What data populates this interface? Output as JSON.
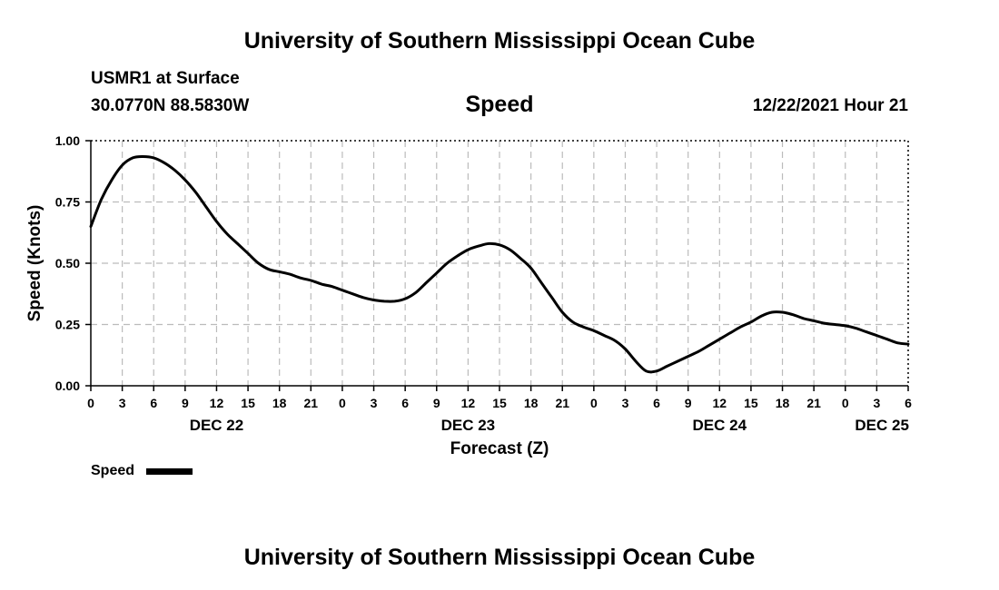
{
  "header": {
    "title": "University of Southern Mississippi Ocean Cube",
    "station": "USMR1 at Surface",
    "location": "30.0770N  88.5830W",
    "variable": "Speed",
    "datetime": "12/22/2021 Hour 21"
  },
  "footer": {
    "title": "University of Southern Mississippi Ocean Cube"
  },
  "legend": {
    "label": "Speed"
  },
  "chart_data": {
    "type": "line",
    "title": "Speed",
    "xlabel": "Forecast (Z)",
    "ylabel": "Speed (Knots)",
    "ylim": [
      0,
      1.0
    ],
    "yticks": [
      0.0,
      0.25,
      0.5,
      0.75,
      1.0
    ],
    "ytick_labels": [
      "0.00",
      "0.25",
      "0.50",
      "0.75",
      "1.00"
    ],
    "xlim_hours": [
      0,
      78
    ],
    "xtick_hours": [
      0,
      3,
      6,
      9,
      12,
      15,
      18,
      21,
      24,
      27,
      30,
      33,
      36,
      39,
      42,
      45,
      48,
      51,
      54,
      57,
      60,
      63,
      66,
      69,
      72,
      75,
      78
    ],
    "xtick_labels": [
      "0",
      "3",
      "6",
      "9",
      "12",
      "15",
      "18",
      "21",
      "0",
      "3",
      "6",
      "9",
      "12",
      "15",
      "18",
      "21",
      "0",
      "3",
      "6",
      "9",
      "12",
      "15",
      "18",
      "21",
      "0",
      "3",
      "6"
    ],
    "date_labels": [
      {
        "label": "DEC 22",
        "hour": 12
      },
      {
        "label": "DEC 23",
        "hour": 36
      },
      {
        "label": "DEC 24",
        "hour": 60
      },
      {
        "label": "DEC 25",
        "hour": 75.5
      }
    ],
    "grid": true,
    "legend_position": "bottom-left",
    "series": [
      {
        "name": "Speed",
        "color": "#000000",
        "x": [
          0,
          1,
          2,
          3,
          4,
          5,
          6,
          7,
          8,
          9,
          10,
          11,
          12,
          13,
          14,
          15,
          16,
          17,
          18,
          19,
          20,
          21,
          22,
          23,
          24,
          25,
          26,
          27,
          28,
          29,
          30,
          31,
          32,
          33,
          34,
          35,
          36,
          37,
          38,
          39,
          40,
          41,
          42,
          43,
          44,
          45,
          46,
          47,
          48,
          49,
          50,
          51,
          52,
          53,
          54,
          55,
          56,
          57,
          58,
          59,
          60,
          61,
          62,
          63,
          64,
          65,
          66,
          67,
          68,
          69,
          70,
          71,
          72,
          73,
          74,
          75,
          76,
          77,
          78
        ],
        "values": [
          0.65,
          0.76,
          0.84,
          0.9,
          0.93,
          0.935,
          0.93,
          0.91,
          0.88,
          0.84,
          0.79,
          0.73,
          0.67,
          0.62,
          0.58,
          0.54,
          0.5,
          0.475,
          0.465,
          0.455,
          0.44,
          0.43,
          0.415,
          0.405,
          0.39,
          0.375,
          0.36,
          0.35,
          0.345,
          0.345,
          0.355,
          0.38,
          0.42,
          0.46,
          0.5,
          0.53,
          0.555,
          0.57,
          0.58,
          0.575,
          0.555,
          0.52,
          0.48,
          0.42,
          0.36,
          0.3,
          0.26,
          0.24,
          0.225,
          0.205,
          0.185,
          0.15,
          0.1,
          0.06,
          0.06,
          0.08,
          0.1,
          0.12,
          0.14,
          0.165,
          0.19,
          0.215,
          0.24,
          0.26,
          0.285,
          0.3,
          0.3,
          0.29,
          0.275,
          0.265,
          0.255,
          0.25,
          0.245,
          0.235,
          0.22,
          0.205,
          0.19,
          0.175,
          0.17
        ]
      }
    ]
  }
}
